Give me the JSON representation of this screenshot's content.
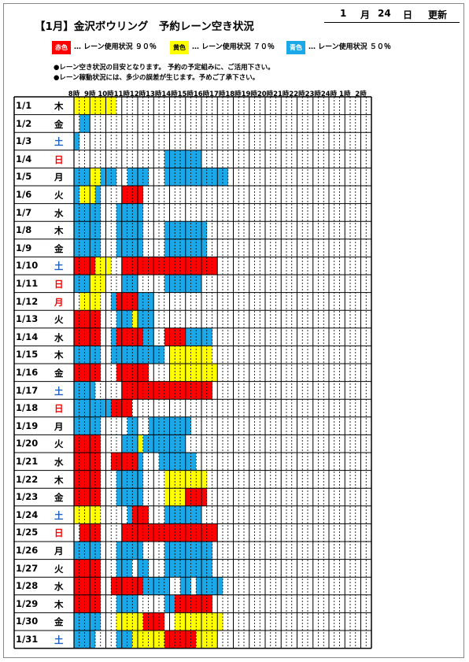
{
  "header": {
    "title": "【1月】金沢ボウリング　予約レーン空き状況",
    "update": {
      "month": "1",
      "month_unit": "月",
      "day": "24",
      "day_unit": "日",
      "label": "更新"
    }
  },
  "legend": [
    {
      "swatch_label": "赤色",
      "text": "… レーン使用状況 ９０％",
      "color": "#ff0000",
      "label_color": "#ffffff"
    },
    {
      "swatch_label": "黄色",
      "text": "… レーン使用状況 ７０％",
      "color": "#ffff00",
      "label_color": "#000000"
    },
    {
      "swatch_label": "青色",
      "text": "… レーン使用状況 ５０％",
      "color": "#1aa8e8",
      "label_color": "#ffffff"
    }
  ],
  "notes": [
    "●レーン空き状況の目安となります。 予約の予定組みに、ご活用下さい。",
    "●レーン稼動状況には、多少の誤差が生じます。予めご了承下さい。"
  ],
  "colors": {
    "R": "#ff0000",
    "Y": "#ffff00",
    "B": "#1aa8e8",
    "W": "#ffffff",
    "weekday": "#000000",
    "sat": "#1f5fbf",
    "sun": "#ff0000"
  },
  "hours": [
    "8時",
    "9時",
    "10時",
    "11時",
    "12時",
    "13時",
    "14時",
    "15時",
    "16時",
    "17時",
    "18時",
    "19時",
    "20時",
    "21時",
    "22時",
    "23時",
    "24時",
    "1時",
    "2時"
  ],
  "rows": [
    {
      "date": "1/1",
      "weekday": "木",
      "kind": "weekday",
      "slots": "W0,Y8,W48"
    },
    {
      "date": "1/2",
      "weekday": "金",
      "kind": "weekday",
      "slots": "W1,B2,W53"
    },
    {
      "date": "1/3",
      "weekday": "土",
      "kind": "sat",
      "slots": "B1,W55"
    },
    {
      "date": "1/4",
      "weekday": "日",
      "kind": "sun",
      "slots": "W17,B7,W32"
    },
    {
      "date": "1/5",
      "weekday": "月",
      "kind": "weekday",
      "slots": "W0,B3,Y2,B3,W2,B4,W3,B12,W27"
    },
    {
      "date": "1/6",
      "weekday": "火",
      "kind": "weekday",
      "slots": "W0,B1,Y3,B1,W4,R4,W43"
    },
    {
      "date": "1/7",
      "weekday": "水",
      "kind": "weekday",
      "slots": "W0,B5,W3,B5,W43"
    },
    {
      "date": "1/8",
      "weekday": "木",
      "kind": "weekday",
      "slots": "W0,B5,W3,B5,W4,B8,W31"
    },
    {
      "date": "1/9",
      "weekday": "金",
      "kind": "weekday",
      "slots": "W0,B5,W3,B5,W4,B8,W31"
    },
    {
      "date": "1/10",
      "weekday": "土",
      "kind": "sat",
      "slots": "W0,R4,Y3,W2,R18,W29"
    },
    {
      "date": "1/11",
      "weekday": "日",
      "kind": "sun",
      "slots": "W0,B3,Y3,W3,B3,W5,B7,W32"
    },
    {
      "date": "1/12",
      "weekday": "月",
      "kind": "sun",
      "slots": "W1,Y4,W2,B1,R4,B3,W41"
    },
    {
      "date": "1/13",
      "weekday": "火",
      "kind": "weekday",
      "slots": "W0,R5,W3,B3,Y1,B3,W41"
    },
    {
      "date": "1/14",
      "weekday": "水",
      "kind": "weekday",
      "slots": "W0,R5,W2,B1,R5,B2,W2,R4,B5,W30"
    },
    {
      "date": "1/15",
      "weekday": "木",
      "kind": "weekday",
      "slots": "W0,B5,W2,B10,W1,Y8,W30"
    },
    {
      "date": "1/16",
      "weekday": "金",
      "kind": "weekday",
      "slots": "W0,R5,W3,R6,W4,Y9,W29"
    },
    {
      "date": "1/17",
      "weekday": "土",
      "kind": "sat",
      "slots": "W0,B4,W5,R17,W30"
    },
    {
      "date": "1/18",
      "weekday": "日",
      "kind": "sun",
      "slots": "W0,B7,R4,W45"
    },
    {
      "date": "1/19",
      "weekday": "月",
      "kind": "weekday",
      "slots": "W0,B5,W5,B2,W2,B8,W34"
    },
    {
      "date": "1/20",
      "weekday": "火",
      "kind": "weekday",
      "slots": "W0,R5,W4,B3,Y1,B8,W35"
    },
    {
      "date": "1/21",
      "weekday": "水",
      "kind": "weekday",
      "slots": "W0,R5,W2,R5,B1,W3,B7,W33"
    },
    {
      "date": "1/22",
      "weekday": "木",
      "kind": "weekday",
      "slots": "W0,R5,W3,B5,W4,Y8,W31"
    },
    {
      "date": "1/23",
      "weekday": "金",
      "kind": "weekday",
      "slots": "W0,R5,W3,B5,W4,Y4,R4,W31"
    },
    {
      "date": "1/24",
      "weekday": "土",
      "kind": "sat",
      "slots": "W0,Y5,W5,B1,R3,W3,B7,W32"
    },
    {
      "date": "1/25",
      "weekday": "日",
      "kind": "sun",
      "slots": "W1,R4,W4,R18,W29"
    },
    {
      "date": "1/26",
      "weekday": "月",
      "kind": "weekday",
      "slots": "W0,B5,W3,B5,W4,B9,W30"
    },
    {
      "date": "1/27",
      "weekday": "火",
      "kind": "weekday",
      "slots": "W0,R5,W3,B3,W1,B2,W3,B9,W30"
    },
    {
      "date": "1/28",
      "weekday": "水",
      "kind": "weekday",
      "slots": "W0,R5,W2,R6,B5,W2,B2,W1,B5,W28"
    },
    {
      "date": "1/29",
      "weekday": "木",
      "kind": "weekday",
      "slots": "W0,R5,W3,B4,W5,B2,R7,W30"
    },
    {
      "date": "1/30",
      "weekday": "金",
      "kind": "weekday",
      "slots": "W0,B5,W3,Y5,R4,W2,Y9,W28"
    },
    {
      "date": "1/31",
      "weekday": "土",
      "kind": "sat",
      "slots": "W0,B4,W4,B3,Y6,R6,Y4,W29"
    }
  ]
}
